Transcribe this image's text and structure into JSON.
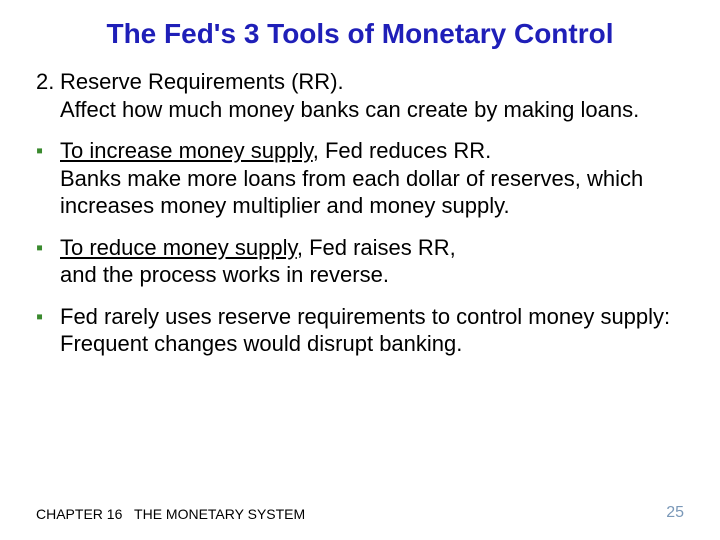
{
  "title": {
    "text": "The Fed's 3 Tools of Monetary Control",
    "color": "#1f1fb8",
    "fontsize": 28
  },
  "body": {
    "color": "#000000",
    "fontsize": 22,
    "line_height": 1.25
  },
  "numbered": {
    "num": "2.",
    "line1": "Reserve Requirements (RR).",
    "line2": "Affect how much money banks can create by making loans."
  },
  "bullets": [
    {
      "marker": "▪",
      "marker_color": "#3a8a2e",
      "underline": "To increase money supply",
      "rest1": ", Fed reduces RR.",
      "line2": "Banks make more loans from each dollar of reserves, which increases money multiplier and money supply."
    },
    {
      "marker": "▪",
      "marker_color": "#3a8a2e",
      "underline": "To reduce money supply",
      "rest1": ", Fed raises RR,",
      "line2": "and the process works in reverse."
    },
    {
      "marker": "▪",
      "marker_color": "#3a8a2e",
      "plain": "Fed rarely uses reserve requirements to control money supply:  Frequent changes would disrupt banking."
    }
  ],
  "footer": {
    "chapter": "CHAPTER 16",
    "title": "THE MONETARY SYSTEM",
    "fontsize": 14,
    "color": "#000000"
  },
  "pagenum": {
    "text": "25",
    "color": "#7a98b8",
    "fontsize": 16
  }
}
